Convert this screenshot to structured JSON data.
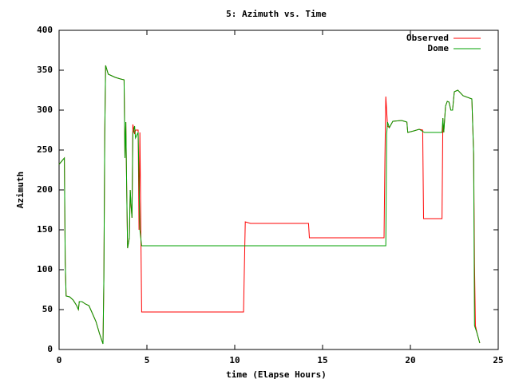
{
  "chart_data": {
    "type": "line",
    "title": "5: Azimuth vs. Time",
    "xlabel": "time (Elapse Hours)",
    "ylabel": "Azimuth",
    "xlim": [
      0,
      25
    ],
    "xticks": [
      0,
      5,
      10,
      15,
      20,
      25
    ],
    "ylim": [
      0,
      400
    ],
    "yticks": [
      0,
      50,
      100,
      150,
      200,
      250,
      300,
      350,
      400
    ],
    "grid": false,
    "legend": "top-right",
    "series": [
      {
        "name": "Observed",
        "color": "#ff0000",
        "x": [
          0,
          0.3,
          0.35,
          0.4,
          0.6,
          0.8,
          1.0,
          1.1,
          1.15,
          1.3,
          1.5,
          1.7,
          1.9,
          2.1,
          2.3,
          2.5,
          2.55,
          2.6,
          2.65,
          2.8,
          3.0,
          3.2,
          3.5,
          3.7,
          3.75,
          3.8,
          3.85,
          3.9,
          4.0,
          4.05,
          4.1,
          4.15,
          4.2,
          4.3,
          4.35,
          4.5,
          4.55,
          4.6,
          4.7,
          10.5,
          10.6,
          10.9,
          14.2,
          14.25,
          18.5,
          18.55,
          18.6,
          18.7,
          18.8,
          19.0,
          19.5,
          19.8,
          19.85,
          20.2,
          20.5,
          20.7,
          20.75,
          21.8,
          21.85,
          21.9,
          22.0,
          22.1,
          22.2,
          22.3,
          22.4,
          22.5,
          22.7,
          23.0,
          23.5,
          23.6,
          23.65,
          23.7,
          23.8,
          23.95
        ],
        "values": [
          232,
          240,
          110,
          67,
          66,
          62,
          55,
          50,
          60,
          60,
          57,
          55,
          45,
          35,
          20,
          7,
          90,
          270,
          356,
          345,
          343,
          341,
          339,
          338,
          240,
          285,
          200,
          127,
          140,
          200,
          180,
          165,
          282,
          270,
          275,
          275,
          150,
          272,
          47,
          47,
          160,
          158,
          158,
          140,
          140,
          240,
          317,
          280,
          278,
          286,
          287,
          285,
          272,
          274,
          276,
          275,
          164,
          164,
          290,
          272,
          305,
          311,
          310,
          300,
          300,
          323,
          325,
          318,
          314,
          245,
          108,
          30,
          20,
          8
        ]
      },
      {
        "name": "Dome",
        "color": "#00a000",
        "x": [
          0,
          0.3,
          0.35,
          0.4,
          0.6,
          0.8,
          1.0,
          1.1,
          1.15,
          1.3,
          1.5,
          1.7,
          1.9,
          2.1,
          2.3,
          2.5,
          2.55,
          2.6,
          2.65,
          2.8,
          3.0,
          3.2,
          3.5,
          3.7,
          3.75,
          3.8,
          3.85,
          3.9,
          4.0,
          4.05,
          4.1,
          4.15,
          4.2,
          4.3,
          4.35,
          4.5,
          4.6,
          4.7,
          18.6,
          18.65,
          18.7,
          18.8,
          19.0,
          19.5,
          19.8,
          19.85,
          20.2,
          20.5,
          20.8,
          21.8,
          21.85,
          21.9,
          22.0,
          22.1,
          22.2,
          22.3,
          22.4,
          22.5,
          22.7,
          23.0,
          23.5,
          23.6,
          23.65,
          23.8,
          23.95
        ],
        "values": [
          232,
          240,
          110,
          67,
          66,
          62,
          55,
          50,
          60,
          60,
          57,
          55,
          45,
          35,
          20,
          7,
          90,
          270,
          356,
          345,
          343,
          341,
          339,
          338,
          240,
          285,
          200,
          127,
          140,
          200,
          180,
          165,
          270,
          280,
          265,
          272,
          150,
          130,
          130,
          270,
          285,
          278,
          286,
          287,
          285,
          272,
          274,
          276,
          272,
          272,
          290,
          272,
          305,
          311,
          310,
          300,
          300,
          323,
          325,
          318,
          314,
          245,
          30,
          20,
          8
        ]
      }
    ]
  }
}
